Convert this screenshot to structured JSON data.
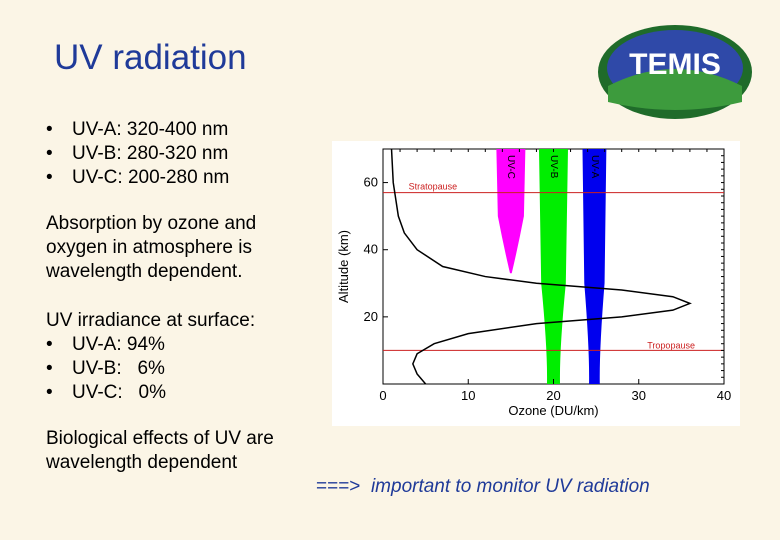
{
  "title": "UV radiation",
  "logo": {
    "text": "TEMIS",
    "colors": {
      "ring": "#2a8a2a",
      "inner": "#1f3a99",
      "text": "#ffffff"
    }
  },
  "bullets": [
    "UV-A: 320-400 nm",
    "UV-B: 280-320 nm",
    "UV-C: 200-280 nm"
  ],
  "absorption_text": "Absorption by ozone and oxygen in atmosphere is wavelength dependent.",
  "irradiance": {
    "heading": "UV irradiance at surface:",
    "items": [
      "UV-A: 94%",
      "UV-B:   6%",
      "UV-C:   0%"
    ]
  },
  "biological_text": "Biological effects of UV are wavelength dependent",
  "conclusion": {
    "arrow": "===>",
    "message": "important to monitor UV radiation"
  },
  "chart_data": {
    "type": "line",
    "xlabel": "Ozone (DU/km)",
    "ylabel": "Altitude (km)",
    "xlim": [
      0,
      40
    ],
    "ylim": [
      0,
      70
    ],
    "x_ticks": [
      "0",
      "10",
      "20",
      "30",
      "40"
    ],
    "y_ticks": [
      "20",
      "40",
      "60"
    ],
    "ozone_profile": {
      "x": [
        5,
        4,
        3.5,
        4,
        6,
        10,
        18,
        28,
        34,
        36,
        34,
        28,
        18,
        12,
        7,
        4,
        2.5,
        1.8,
        1.5,
        1.2,
        1
      ],
      "y": [
        0,
        3,
        6,
        9,
        12,
        15,
        18,
        20,
        22,
        24,
        26,
        28,
        30,
        32,
        35,
        40,
        45,
        50,
        55,
        60,
        70
      ]
    },
    "reference_lines": [
      {
        "label": "Stratopause",
        "altitude": 57,
        "color": "#cc2020"
      },
      {
        "label": "Tropopause",
        "altitude": 10,
        "color": "#cc2020"
      }
    ],
    "bands": [
      {
        "label": "UV-C",
        "color": "#ff00ff",
        "center": 15,
        "top_width": 3.4,
        "bottom_altitude": 33
      },
      {
        "label": "UV-B",
        "color": "#00ee00",
        "center": 20,
        "top_width": 3.4,
        "bottom_altitude": 0
      },
      {
        "label": "UV-A",
        "color": "#0000ee",
        "center": 24.8,
        "top_width": 2.8,
        "bottom_altitude": 0
      }
    ]
  }
}
